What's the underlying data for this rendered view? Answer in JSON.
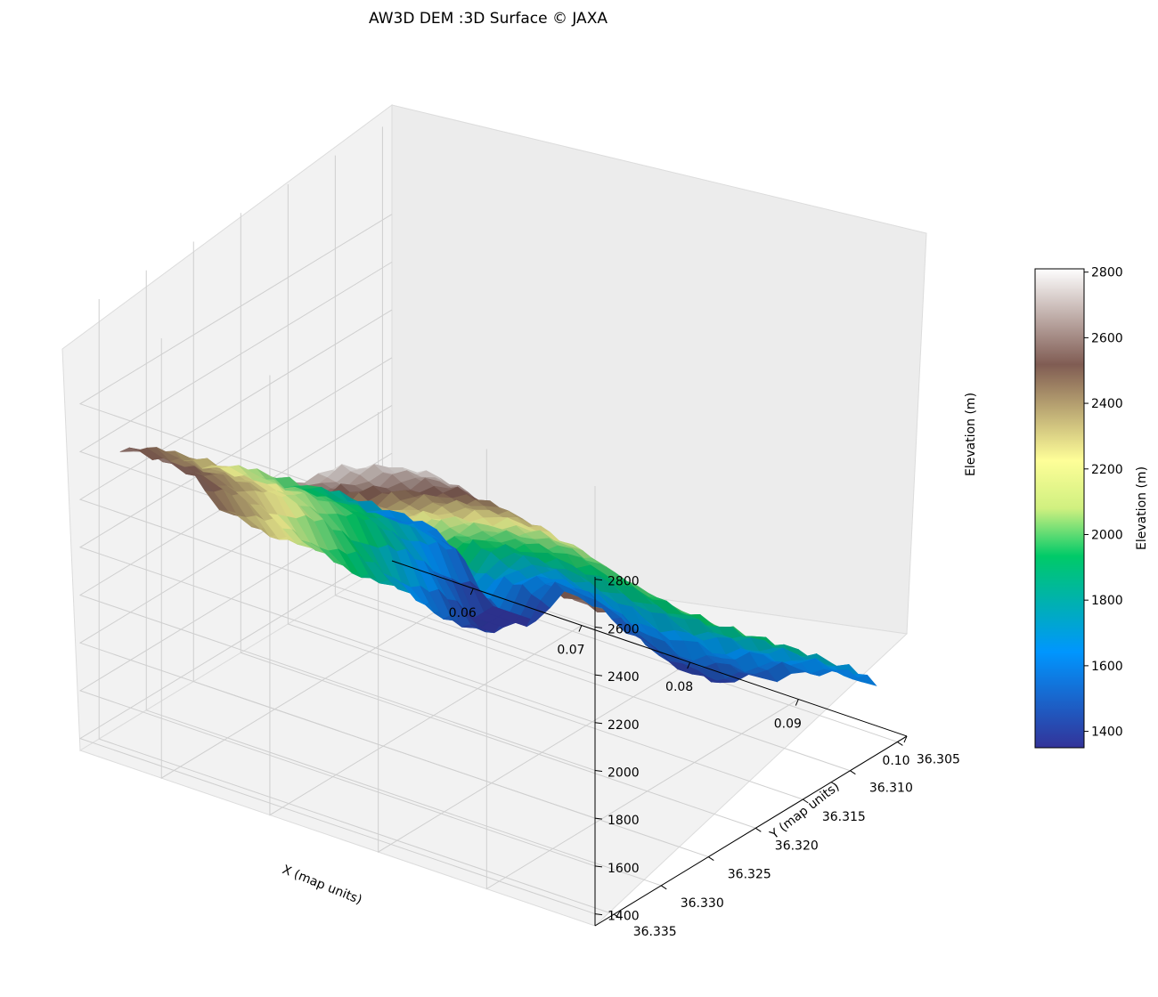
{
  "chart_data": {
    "type": "surface3d",
    "title": "AW3D DEM :3D Surface © JAXA",
    "xlabel": "X (map units)",
    "ylabel": "Y (map units)",
    "zlabel": "Elevation (m)",
    "colorbar_label": "Elevation (m)",
    "colormap": "terrain",
    "x_ticks": [
      "0.06",
      "0.07",
      "0.08",
      "0.09",
      "0.10"
    ],
    "y_ticks": [
      "36.305",
      "36.310",
      "36.315",
      "36.320",
      "36.325",
      "36.330",
      "36.335"
    ],
    "z_ticks": [
      "1400",
      "1600",
      "1800",
      "2000",
      "2200",
      "2400",
      "2600",
      "2800"
    ],
    "colorbar_ticks": [
      "1400",
      "1600",
      "1800",
      "2000",
      "2200",
      "2400",
      "2600",
      "2800"
    ],
    "xlim": [
      0.0525,
      0.1
    ],
    "ylim": [
      36.304,
      36.337
    ],
    "zlim": [
      1350,
      2810
    ],
    "grid": true,
    "colorbar_position": "right",
    "colors": {
      "pane": "#f2f2f2",
      "pane_side": "#ececec",
      "grid": "#cfcfcf",
      "terrain_stops": [
        "#333399",
        "#0096fe",
        "#00ca68",
        "#fefe98",
        "#805c53",
        "#fefefe"
      ]
    }
  }
}
